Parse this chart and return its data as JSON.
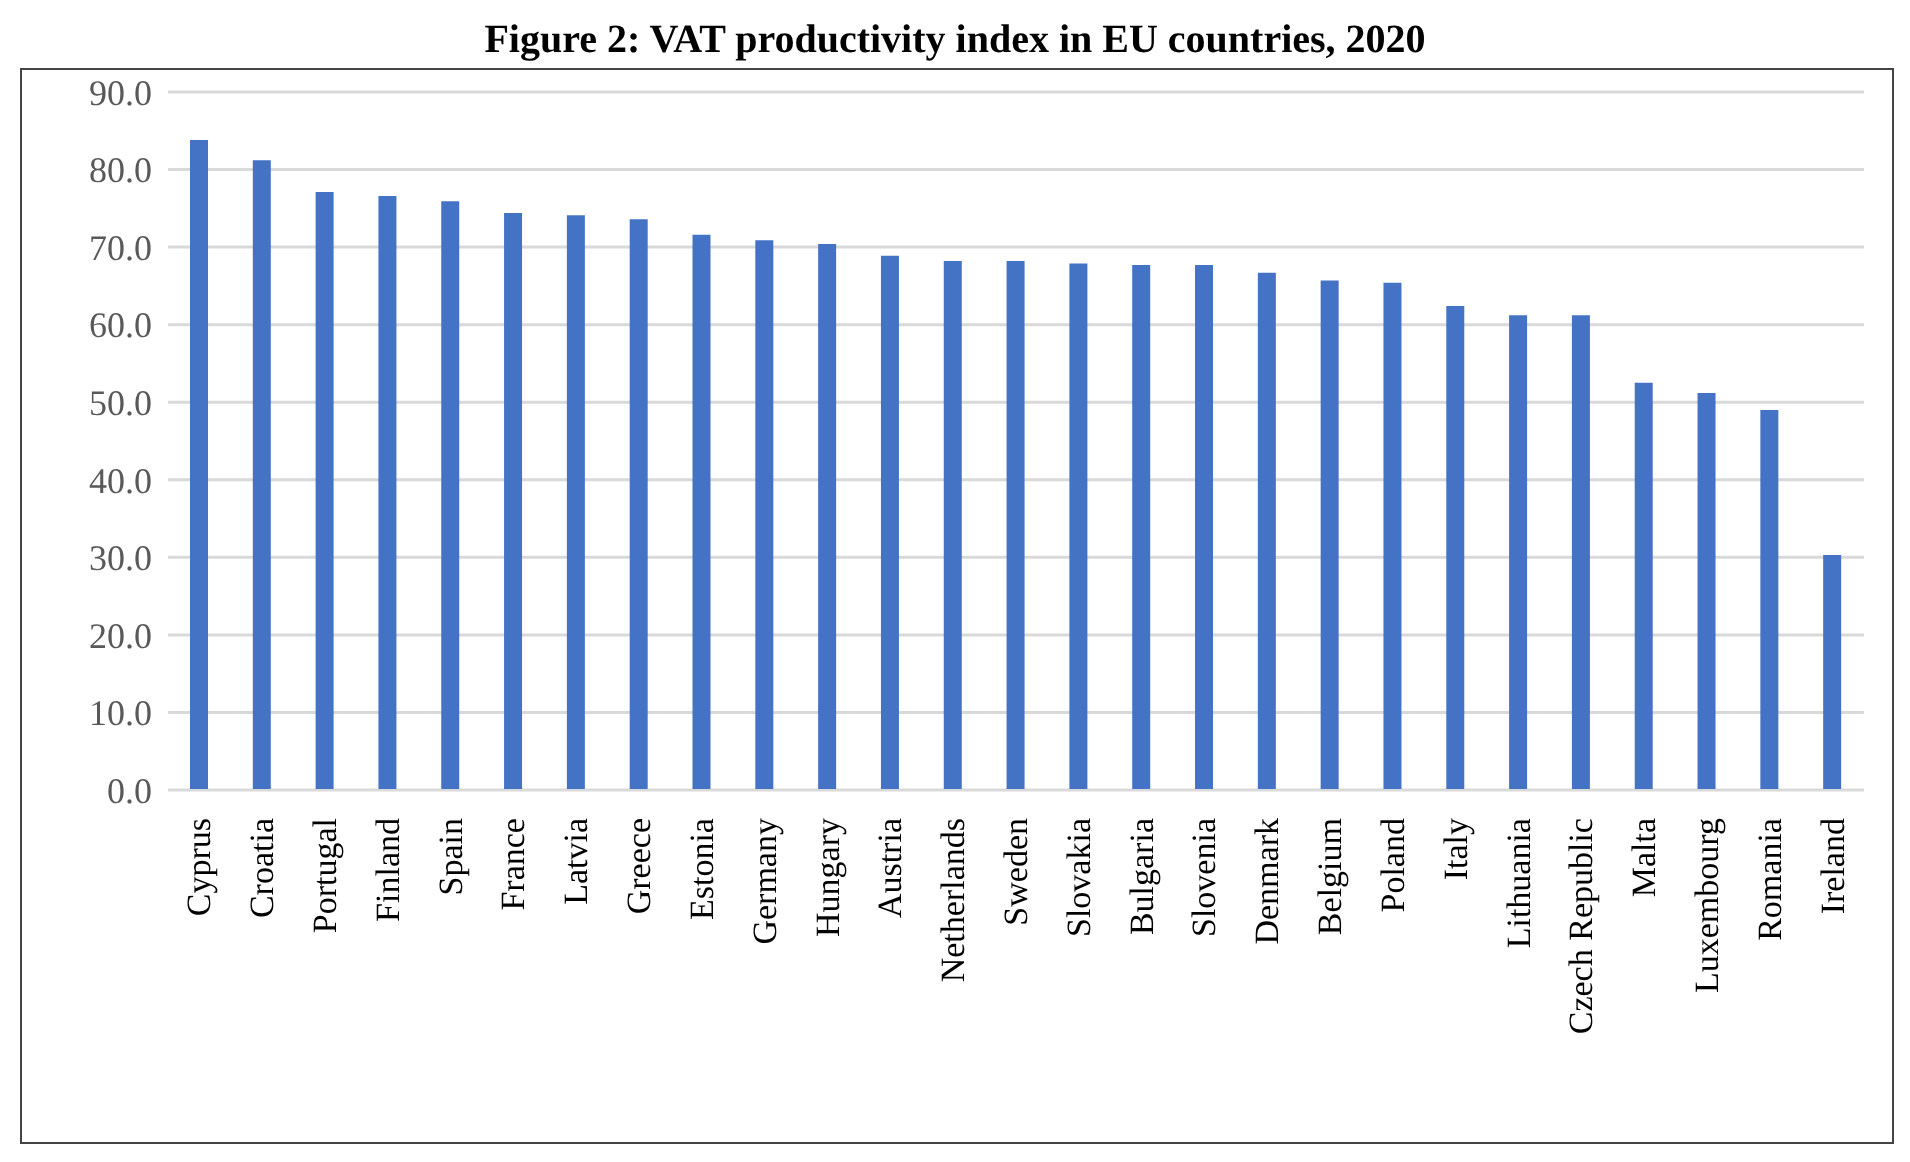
{
  "chart_data": {
    "type": "bar",
    "title": "Figure 2: VAT productivity index in EU countries, 2020",
    "categories": [
      "Cyprus",
      "Croatia",
      "Portugal",
      "Finland",
      "Spain",
      "France",
      "Latvia",
      "Greece",
      "Estonia",
      "Germany",
      "Hungary",
      "Austria",
      "Netherlands",
      "Sweden",
      "Slovakia",
      "Bulgaria",
      "Slovenia",
      "Denmark",
      "Belgium",
      "Poland",
      "Italy",
      "Lithuania",
      "Czech Republic",
      "Malta",
      "Luxembourg",
      "Romania",
      "Ireland"
    ],
    "values": [
      83.8,
      81.2,
      77.1,
      76.6,
      75.9,
      74.4,
      74.1,
      73.6,
      71.6,
      70.9,
      70.4,
      68.9,
      68.2,
      68.2,
      67.9,
      67.7,
      67.7,
      66.7,
      65.7,
      65.4,
      62.4,
      61.2,
      61.2,
      52.5,
      51.2,
      49.0,
      30.3
    ],
    "color": "#4472c4",
    "ylim": [
      0,
      90
    ],
    "yticks": [
      {
        "value": 0,
        "label": "0.0"
      },
      {
        "value": 10,
        "label": "10.0"
      },
      {
        "value": 20,
        "label": "20.0"
      },
      {
        "value": 30,
        "label": "30.0"
      },
      {
        "value": 40,
        "label": "40.0"
      },
      {
        "value": 50,
        "label": "50.0"
      },
      {
        "value": 60,
        "label": "60.0"
      },
      {
        "value": 70,
        "label": "70.0"
      },
      {
        "value": 80,
        "label": "80.0"
      },
      {
        "value": 90,
        "label": "90.0"
      }
    ],
    "grid": "y"
  }
}
